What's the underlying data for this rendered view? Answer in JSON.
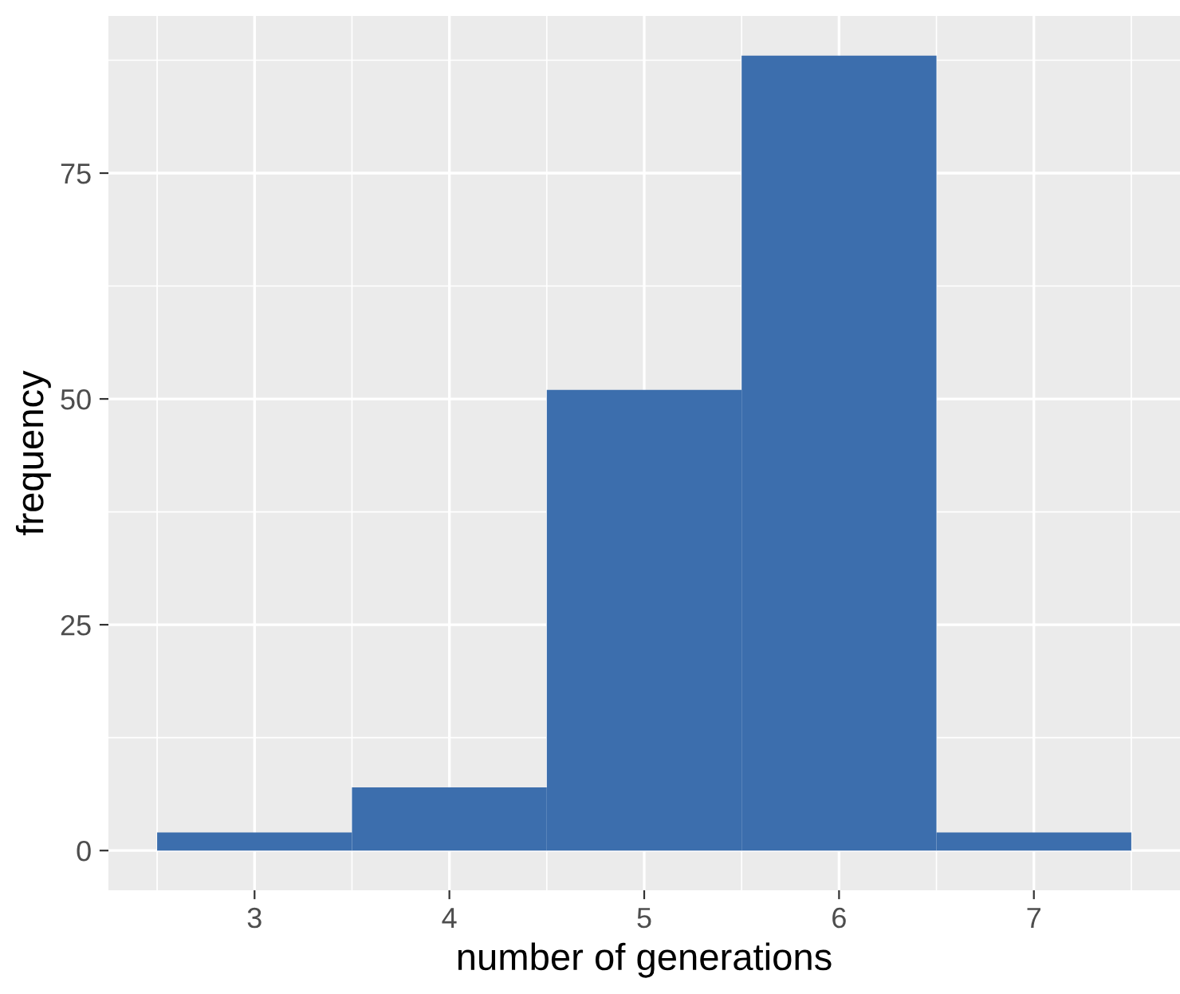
{
  "chart_data": {
    "type": "histogram",
    "xlabel": "number of generations",
    "ylabel": "frequency",
    "bins": [
      2.5,
      3.5,
      4.5,
      5.5,
      6.5,
      7.5
    ],
    "values": [
      2,
      7,
      51,
      88,
      2
    ],
    "color": "#3c6ead",
    "xlim": [
      2.25,
      7.75
    ],
    "ylim": [
      -4.4,
      92.4
    ],
    "xticks": [
      3,
      4,
      5,
      6,
      7
    ],
    "yticks": [
      0,
      25,
      50,
      75
    ],
    "grid": true
  }
}
